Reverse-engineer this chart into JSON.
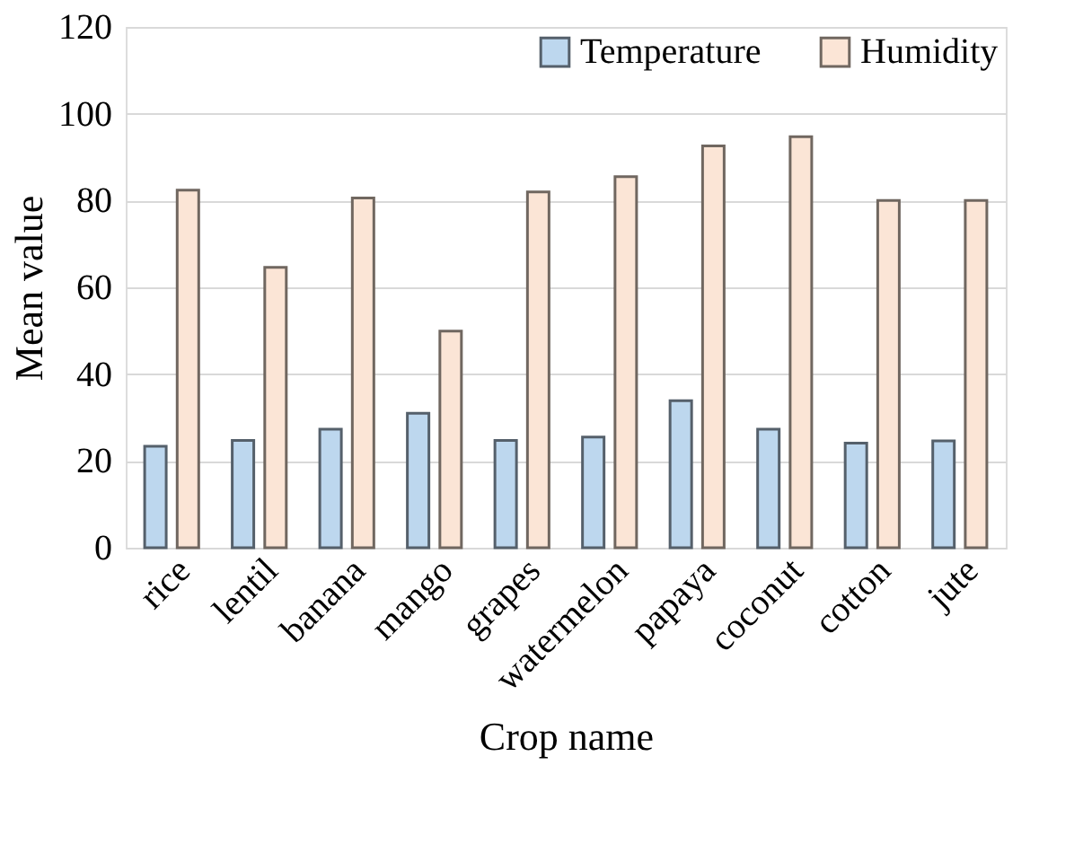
{
  "chart_data": {
    "type": "bar",
    "xlabel": "Crop name",
    "ylabel": "Mean value",
    "categories": [
      "rice",
      "lentil",
      "banana",
      "mango",
      "grapes",
      "watermelon",
      "papaya",
      "coconut",
      "cotton",
      "jute"
    ],
    "series": [
      {
        "name": "Temperature",
        "color": "#bdd7ee",
        "values": [
          23.4,
          24.7,
          27.3,
          31.0,
          24.7,
          25.5,
          33.9,
          27.3,
          24.1,
          24.6
        ]
      },
      {
        "name": "Humidity",
        "color": "#fbe5d6",
        "values": [
          82.4,
          64.6,
          80.6,
          49.9,
          82.0,
          85.5,
          92.6,
          94.7,
          80.0,
          80.0
        ]
      }
    ],
    "ylim": [
      0,
      120
    ],
    "yticks": [
      0,
      20,
      40,
      60,
      80,
      100,
      120
    ],
    "grid": "y",
    "legend": "top right"
  }
}
